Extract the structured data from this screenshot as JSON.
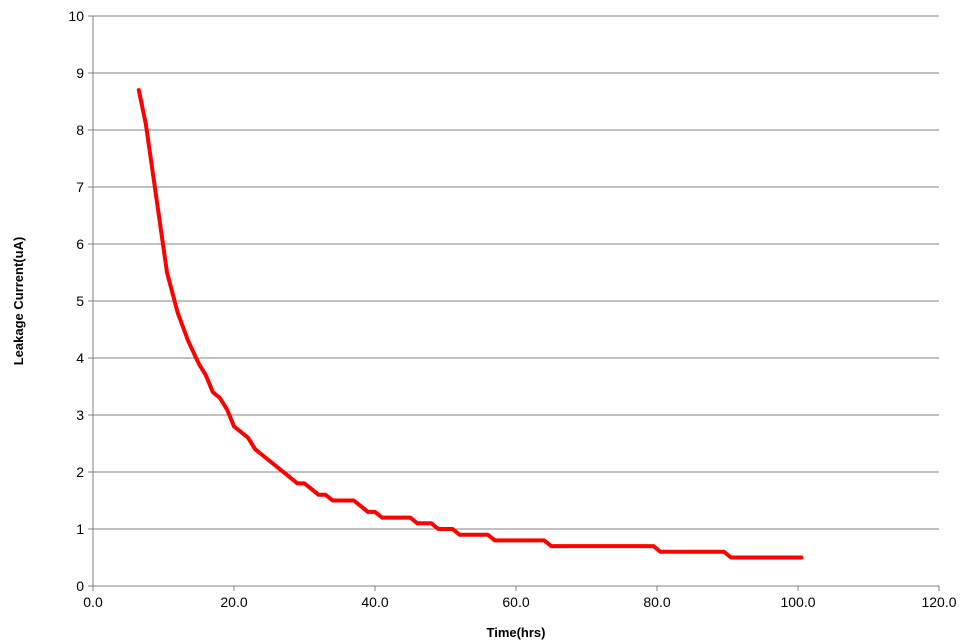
{
  "chart_data": {
    "type": "line",
    "title": "",
    "xlabel": "Time(hrs)",
    "ylabel": "Leakage Current(uA)",
    "xlim": [
      0,
      120
    ],
    "ylim": [
      0,
      10
    ],
    "x_tick_values": [
      0,
      20,
      40,
      60,
      80,
      100,
      120
    ],
    "x_tick_labels": [
      "0.0",
      "20.0",
      "40.0",
      "60.0",
      "80.0",
      "100.0",
      "120.0"
    ],
    "y_tick_values": [
      0,
      1,
      2,
      3,
      4,
      5,
      6,
      7,
      8,
      9,
      10
    ],
    "y_tick_labels": [
      "0",
      "1",
      "2",
      "3",
      "4",
      "5",
      "6",
      "7",
      "8",
      "9",
      "10"
    ],
    "grid": "horizontal",
    "legend": "none",
    "colors": {
      "series": "#ff0000",
      "grid": "#808080",
      "axis": "#808080"
    },
    "series": [
      {
        "x": [
          6.5,
          7.5,
          9.0,
          10.5,
          12.0,
          13.5,
          15.0,
          16.0,
          17.0,
          18.0,
          19.0,
          20.0,
          21.0,
          22.0,
          23.0,
          24.5,
          26.0,
          27.5,
          29.0,
          30.0,
          31.0,
          32.0,
          33.0,
          34.0,
          35.0,
          36.0,
          37.0,
          38.0,
          39.0,
          40.0,
          41.0,
          42.0,
          43.0,
          44.0,
          45.0,
          46.0,
          47.0,
          48.0,
          49.0,
          50.0,
          51.0,
          52.0,
          53.0,
          54.0,
          55.0,
          56.0,
          57.0,
          58.0,
          59.0,
          60.0,
          61.0,
          62.0,
          63.0,
          64.0,
          65.0,
          66.0,
          67.0,
          68.0,
          69.0,
          70.0,
          71.0,
          72.0,
          73.0,
          74.0,
          75.0,
          76.0,
          77.0,
          78.5,
          79.5,
          80.5,
          81.5,
          82.5,
          83.5,
          84.5,
          85.5,
          86.5,
          87.5,
          88.5,
          89.5,
          90.5,
          91.5,
          92.5,
          93.5,
          94.5,
          95.5,
          96.5,
          97.5,
          98.5,
          99.5,
          100.5
        ],
        "values": [
          8.7,
          8.1,
          6.8,
          5.5,
          4.8,
          4.3,
          3.9,
          3.7,
          3.4,
          3.3,
          3.1,
          2.8,
          2.7,
          2.6,
          2.4,
          2.25,
          2.1,
          1.95,
          1.8,
          1.8,
          1.7,
          1.6,
          1.6,
          1.5,
          1.5,
          1.5,
          1.5,
          1.4,
          1.3,
          1.3,
          1.2,
          1.2,
          1.2,
          1.2,
          1.2,
          1.1,
          1.1,
          1.1,
          1.0,
          1.0,
          1.0,
          0.9,
          0.9,
          0.9,
          0.9,
          0.9,
          0.8,
          0.8,
          0.8,
          0.8,
          0.8,
          0.8,
          0.8,
          0.8,
          0.7,
          0.7,
          0.7,
          0.7,
          0.7,
          0.7,
          0.7,
          0.7,
          0.7,
          0.7,
          0.7,
          0.7,
          0.7,
          0.7,
          0.7,
          0.6,
          0.6,
          0.6,
          0.6,
          0.6,
          0.6,
          0.6,
          0.6,
          0.6,
          0.6,
          0.5,
          0.5,
          0.5,
          0.5,
          0.5,
          0.5,
          0.5,
          0.5,
          0.5,
          0.5,
          0.5
        ]
      }
    ]
  }
}
